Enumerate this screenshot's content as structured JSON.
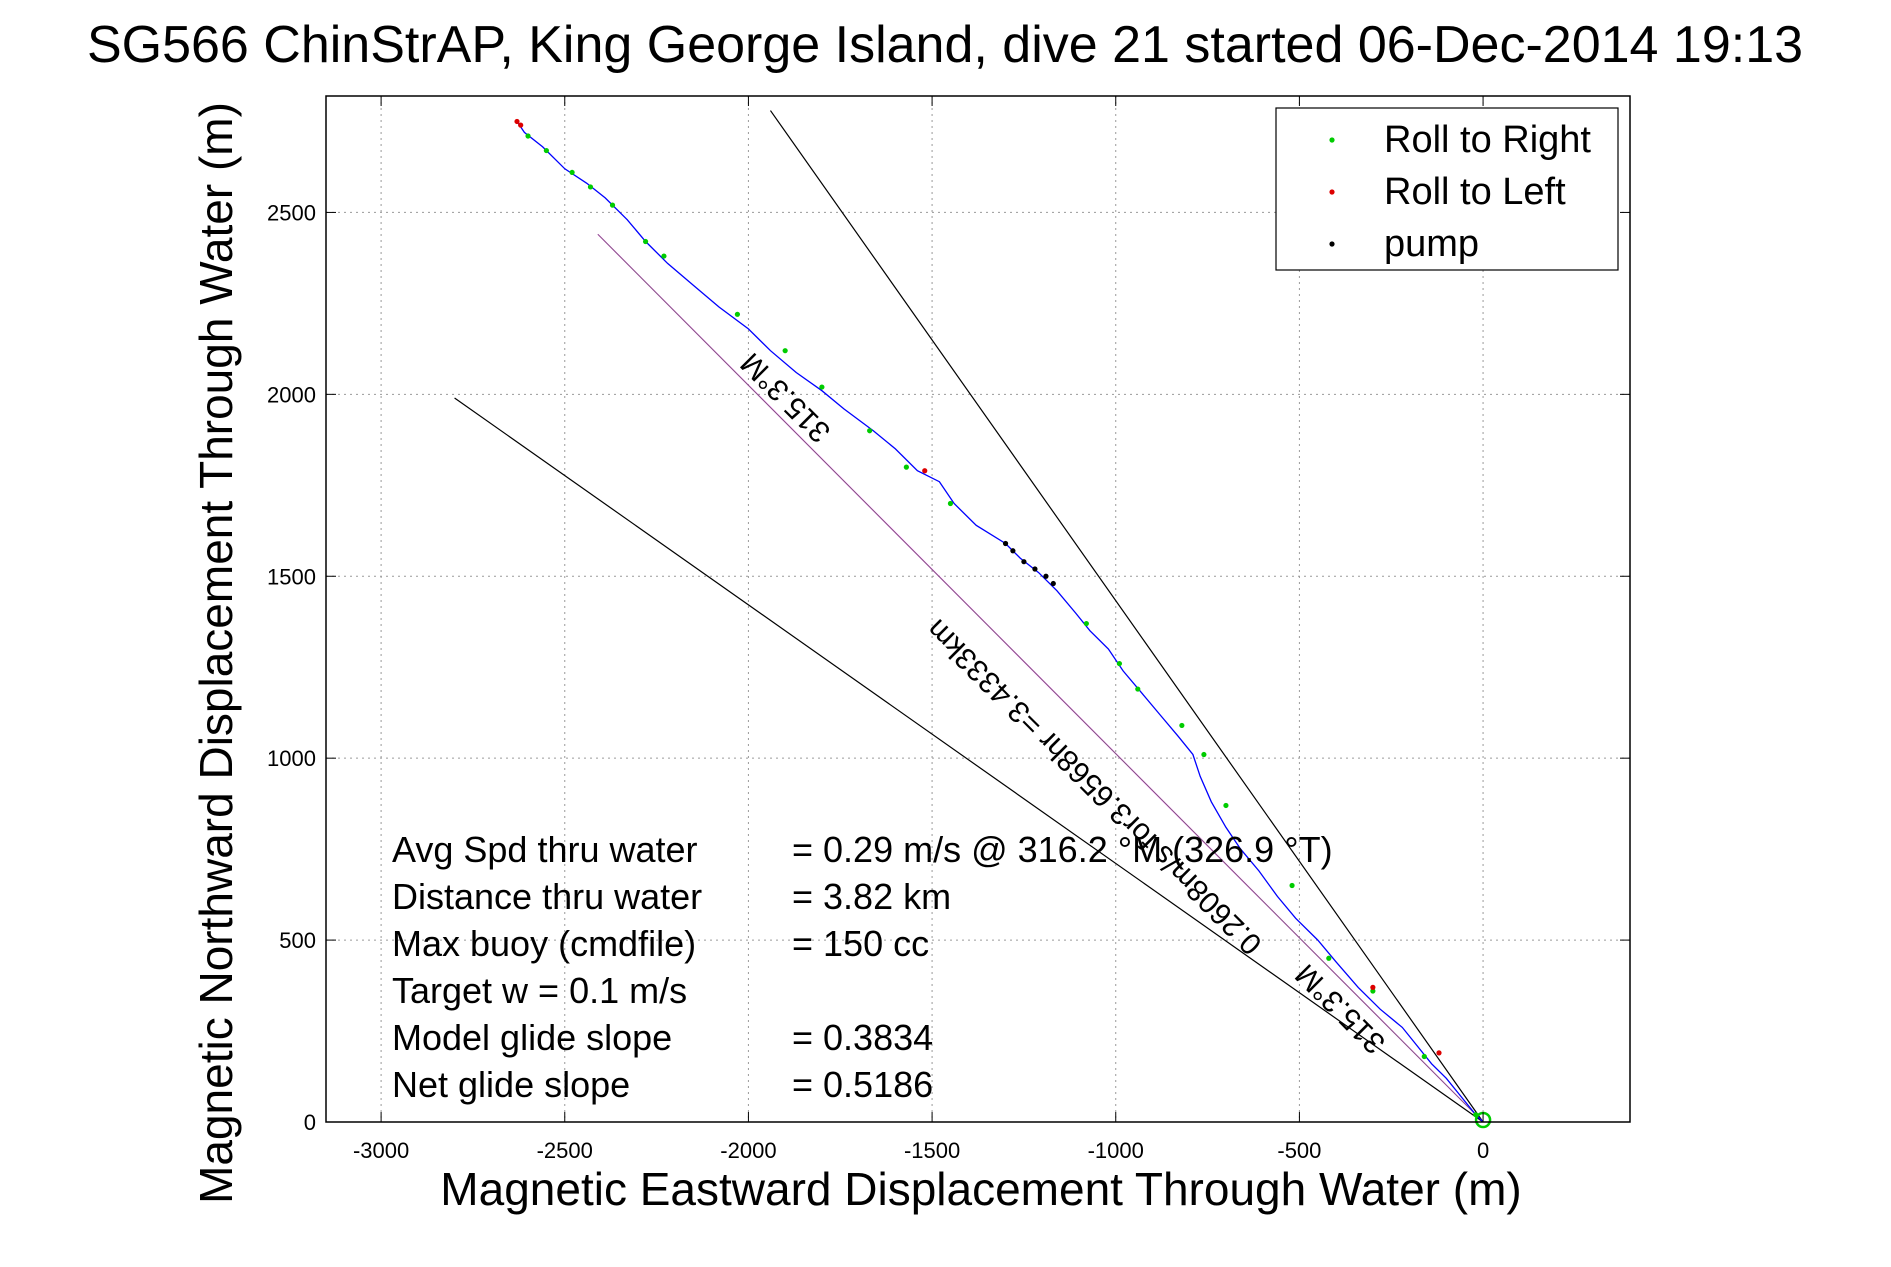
{
  "chart_data": {
    "type": "scatter",
    "title": "SG566 ChinStrAP, King George Island, dive 21 started 06-Dec-2014 19:13",
    "xlabel": "Magnetic Eastward Displacement Through Water (m)",
    "ylabel": "Magnetic Northward Displacement Through Water (m)",
    "xlim": [
      -3150,
      400
    ],
    "ylim": [
      0,
      2820
    ],
    "grid": true,
    "legend_position": "top-right",
    "x_ticks": [
      -3000,
      -2500,
      -2000,
      -1500,
      -1000,
      -500,
      0
    ],
    "x_tick_labels": [
      "-3000",
      "-2500",
      "-2000",
      "-1500",
      "-1000",
      "-500",
      "0"
    ],
    "y_ticks": [
      0,
      500,
      1000,
      1500,
      2000,
      2500
    ],
    "y_tick_labels": [
      "0",
      "500",
      "1000",
      "1500",
      "2000",
      "2500"
    ],
    "legend": [
      {
        "label": "Roll to Right",
        "color": "#00cc00"
      },
      {
        "label": "Roll to Left",
        "color": "#dd0000"
      },
      {
        "label": "pump",
        "color": "#000000"
      }
    ],
    "track": {
      "color": "#0000ff",
      "points": [
        [
          0,
          0
        ],
        [
          -20,
          20
        ],
        [
          -60,
          70
        ],
        [
          -100,
          120
        ],
        [
          -140,
          160
        ],
        [
          -180,
          210
        ],
        [
          -220,
          260
        ],
        [
          -280,
          310
        ],
        [
          -340,
          370
        ],
        [
          -400,
          440
        ],
        [
          -450,
          500
        ],
        [
          -510,
          560
        ],
        [
          -560,
          620
        ],
        [
          -610,
          690
        ],
        [
          -660,
          750
        ],
        [
          -700,
          810
        ],
        [
          -740,
          880
        ],
        [
          -770,
          950
        ],
        [
          -790,
          1010
        ],
        [
          -830,
          1060
        ],
        [
          -880,
          1120
        ],
        [
          -930,
          1180
        ],
        [
          -980,
          1240
        ],
        [
          -1020,
          1300
        ],
        [
          -1070,
          1350
        ],
        [
          -1110,
          1400
        ],
        [
          -1160,
          1460
        ],
        [
          -1210,
          1510
        ],
        [
          -1260,
          1550
        ],
        [
          -1300,
          1590
        ],
        [
          -1380,
          1640
        ],
        [
          -1440,
          1700
        ],
        [
          -1480,
          1760
        ],
        [
          -1540,
          1790
        ],
        [
          -1600,
          1850
        ],
        [
          -1660,
          1900
        ],
        [
          -1740,
          1960
        ],
        [
          -1800,
          2010
        ],
        [
          -1870,
          2060
        ],
        [
          -1940,
          2120
        ],
        [
          -2000,
          2180
        ],
        [
          -2080,
          2240
        ],
        [
          -2150,
          2300
        ],
        [
          -2220,
          2360
        ],
        [
          -2280,
          2420
        ],
        [
          -2330,
          2480
        ],
        [
          -2390,
          2540
        ],
        [
          -2440,
          2580
        ],
        [
          -2500,
          2620
        ],
        [
          -2560,
          2680
        ],
        [
          -2610,
          2720
        ],
        [
          -2630,
          2750
        ]
      ]
    },
    "roll_right": [
      [
        -20,
        20
      ],
      [
        -160,
        180
      ],
      [
        -300,
        360
      ],
      [
        -420,
        450
      ],
      [
        -520,
        650
      ],
      [
        -700,
        870
      ],
      [
        -760,
        1010
      ],
      [
        -820,
        1090
      ],
      [
        -940,
        1190
      ],
      [
        -990,
        1260
      ],
      [
        -1080,
        1370
      ],
      [
        -1450,
        1700
      ],
      [
        -1570,
        1800
      ],
      [
        -1670,
        1900
      ],
      [
        -1800,
        2020
      ],
      [
        -1900,
        2120
      ],
      [
        -2030,
        2220
      ],
      [
        -2230,
        2380
      ],
      [
        -2280,
        2420
      ],
      [
        -2370,
        2520
      ],
      [
        -2430,
        2570
      ],
      [
        -2480,
        2610
      ],
      [
        -2550,
        2670
      ],
      [
        -2600,
        2710
      ]
    ],
    "roll_left": [
      [
        -120,
        190
      ],
      [
        -300,
        370
      ],
      [
        -1520,
        1790
      ],
      [
        -2620,
        2740
      ],
      [
        -2630,
        2750
      ]
    ],
    "pump": [
      [
        -1300,
        1590
      ],
      [
        -1280,
        1570
      ],
      [
        -1250,
        1540
      ],
      [
        -1220,
        1520
      ],
      [
        -1190,
        1500
      ],
      [
        -1170,
        1480
      ]
    ],
    "reference_lines": [
      {
        "from": [
          0,
          0
        ],
        "to": [
          -1940,
          2780
        ],
        "color": "#000000"
      },
      {
        "from": [
          0,
          0
        ],
        "to": [
          -2800,
          1990
        ],
        "color": "#000000"
      },
      {
        "from": [
          0,
          0
        ],
        "to": [
          -2410,
          2440
        ],
        "color": "#ff00ff"
      },
      {
        "from": [
          0,
          0
        ],
        "to": [
          -2410,
          2440
        ],
        "color": "#00cc00"
      }
    ],
    "line_labels": [
      {
        "text": "315.3°M",
        "x": -1880,
        "y": 2010,
        "angle_deg": 225
      },
      {
        "text": "315.3°M",
        "x": -370,
        "y": 330,
        "angle_deg": 225
      },
      {
        "text": "0.2608m/s for3.6568hr =3.4333km",
        "x": -1040,
        "y": 940,
        "angle_deg": 225
      }
    ],
    "annotations": [
      {
        "label": "Avg Spd thru water",
        "value": "=  0.29 m/s @ 316.2 °M (326.9 °T)"
      },
      {
        "label": "Distance thru water",
        "value": "=  3.82 km"
      },
      {
        "label": "Max buoy (cmdfile)",
        "value": "= 150 cc"
      },
      {
        "label": "Target w    = 0.1 m/s",
        "value": ""
      },
      {
        "label": "Model glide slope",
        "value": "= 0.3834"
      },
      {
        "label": "Net glide slope",
        "value": "= 0.5186"
      }
    ]
  }
}
